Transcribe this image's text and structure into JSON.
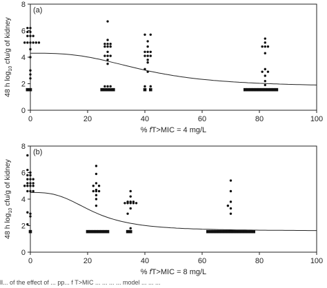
{
  "chart_data": [
    {
      "type": "scatter",
      "panel_label": "(a)",
      "xlabel_parts": [
        "% ",
        "f",
        "T>MIC = 4 mg/L"
      ],
      "ylabel": "48 h log10 cfu/g of kidney",
      "xlim": [
        0,
        100
      ],
      "ylim": [
        0,
        8
      ],
      "xticks": [
        "0",
        "20",
        "40",
        "60",
        "80",
        "100"
      ],
      "yticks": [
        "0",
        "2",
        "4",
        "6",
        "8"
      ],
      "grid": false,
      "series": [
        {
          "marker": "circle",
          "points": [
            [
              -1,
              6.2
            ],
            [
              0,
              6.2
            ],
            [
              -1,
              5.9
            ],
            [
              0,
              5.9
            ],
            [
              -1,
              5.6
            ],
            [
              0,
              5.6
            ],
            [
              1,
              5.6
            ],
            [
              -2,
              5.1
            ],
            [
              -1,
              5.1
            ],
            [
              0,
              5.1
            ],
            [
              1,
              5.1
            ],
            [
              2,
              5.1
            ],
            [
              3,
              5.1
            ],
            [
              0,
              4.6
            ],
            [
              0,
              4.0
            ],
            [
              0,
              3.0
            ],
            [
              0,
              2.7
            ],
            [
              0,
              2.4
            ],
            [
              27,
              6.7
            ],
            [
              27,
              5.3
            ],
            [
              26,
              5.0
            ],
            [
              27,
              5.0
            ],
            [
              28,
              5.0
            ],
            [
              26,
              4.8
            ],
            [
              27,
              4.8
            ],
            [
              28,
              4.8
            ],
            [
              27,
              4.4
            ],
            [
              26,
              4.1
            ],
            [
              27,
              4.1
            ],
            [
              28,
              4.1
            ],
            [
              27,
              3.8
            ],
            [
              27,
              3.5
            ],
            [
              26,
              1.8
            ],
            [
              27,
              1.8
            ],
            [
              28,
              1.8
            ],
            [
              40,
              5.7
            ],
            [
              42,
              5.7
            ],
            [
              41,
              5.2
            ],
            [
              41,
              4.8
            ],
            [
              40,
              4.4
            ],
            [
              41,
              4.4
            ],
            [
              42,
              4.4
            ],
            [
              40,
              4.1
            ],
            [
              41,
              4.1
            ],
            [
              42,
              4.1
            ],
            [
              41,
              3.8
            ],
            [
              41,
              3.6
            ],
            [
              40,
              3.1
            ],
            [
              41,
              2.9
            ],
            [
              40,
              1.8
            ],
            [
              42,
              1.8
            ],
            [
              82,
              5.4
            ],
            [
              82,
              5.1
            ],
            [
              81,
              4.8
            ],
            [
              82,
              4.8
            ],
            [
              83,
              4.8
            ],
            [
              82,
              4.3
            ],
            [
              82,
              3.1
            ],
            [
              81,
              2.9
            ],
            [
              83,
              2.9
            ],
            [
              82,
              2.6
            ],
            [
              82,
              2.2
            ],
            [
              82,
              1.9
            ]
          ]
        },
        {
          "marker": "square",
          "points": [
            [
              -1,
              1.55
            ],
            [
              0,
              1.55
            ],
            [
              25,
              1.55
            ],
            [
              26,
              1.55
            ],
            [
              27,
              1.55
            ],
            [
              28,
              1.55
            ],
            [
              29,
              1.55
            ],
            [
              40,
              1.55
            ],
            [
              42,
              1.55
            ],
            [
              75,
              1.55
            ],
            [
              76,
              1.55
            ],
            [
              77,
              1.55
            ],
            [
              78,
              1.55
            ],
            [
              79,
              1.55
            ],
            [
              80,
              1.55
            ],
            [
              81,
              1.55
            ],
            [
              82,
              1.55
            ],
            [
              83,
              1.55
            ],
            [
              84,
              1.55
            ],
            [
              85,
              1.55
            ],
            [
              86,
              1.55
            ]
          ]
        }
      ],
      "fit_curve": {
        "top": 4.3,
        "bottom": 1.75,
        "ec50": 40,
        "hill": 3
      }
    },
    {
      "type": "scatter",
      "panel_label": "(b)",
      "xlabel_parts": [
        "% ",
        "f",
        "T>MIC = 8 mg/L"
      ],
      "ylabel": "48 h log10 cfu/g of kidney",
      "xlim": [
        0,
        100
      ],
      "ylim": [
        0,
        8
      ],
      "xticks": [
        "0",
        "20",
        "40",
        "60",
        "80",
        "100"
      ],
      "yticks": [
        "0",
        "2",
        "4",
        "6",
        "8"
      ],
      "grid": false,
      "series": [
        {
          "marker": "circle",
          "points": [
            [
              -1,
              7.3
            ],
            [
              -1,
              6.2
            ],
            [
              0,
              6.0
            ],
            [
              -1,
              5.8
            ],
            [
              0,
              5.8
            ],
            [
              -1,
              5.5
            ],
            [
              0,
              5.5
            ],
            [
              1,
              5.5
            ],
            [
              -1,
              5.2
            ],
            [
              0,
              5.2
            ],
            [
              1,
              5.2
            ],
            [
              -2,
              5.0
            ],
            [
              -1,
              5.0
            ],
            [
              0,
              5.0
            ],
            [
              1,
              5.0
            ],
            [
              -1,
              4.6
            ],
            [
              0,
              4.6
            ],
            [
              1,
              4.6
            ],
            [
              -1,
              3.0
            ],
            [
              0,
              2.9
            ],
            [
              0,
              2.7
            ],
            [
              -1,
              2.1
            ],
            [
              23,
              6.5
            ],
            [
              23,
              5.9
            ],
            [
              23,
              5.2
            ],
            [
              22,
              5.0
            ],
            [
              24,
              5.0
            ],
            [
              23,
              4.7
            ],
            [
              22,
              4.6
            ],
            [
              23,
              4.6
            ],
            [
              24,
              4.6
            ],
            [
              23,
              4.3
            ],
            [
              23,
              4.0
            ],
            [
              23,
              3.5
            ],
            [
              35,
              4.6
            ],
            [
              35,
              4.2
            ],
            [
              34,
              3.8
            ],
            [
              35,
              3.8
            ],
            [
              36,
              3.8
            ],
            [
              33,
              3.7
            ],
            [
              34,
              3.7
            ],
            [
              35,
              3.7
            ],
            [
              36,
              3.7
            ],
            [
              37,
              3.7
            ],
            [
              35,
              3.3
            ],
            [
              34,
              2.9
            ],
            [
              35,
              1.8
            ],
            [
              70,
              5.4
            ],
            [
              70,
              4.6
            ],
            [
              70,
              3.8
            ],
            [
              69,
              3.5
            ],
            [
              70,
              3.3
            ],
            [
              70,
              2.9
            ]
          ]
        },
        {
          "marker": "square",
          "points": [
            [
              0,
              1.55
            ],
            [
              20,
              1.55
            ],
            [
              21,
              1.55
            ],
            [
              22,
              1.55
            ],
            [
              23,
              1.55
            ],
            [
              24,
              1.55
            ],
            [
              25,
              1.55
            ],
            [
              26,
              1.55
            ],
            [
              27,
              1.55
            ],
            [
              34,
              1.55
            ],
            [
              35,
              1.55
            ],
            [
              62,
              1.55
            ],
            [
              63,
              1.55
            ],
            [
              64,
              1.55
            ],
            [
              65,
              1.55
            ],
            [
              66,
              1.55
            ],
            [
              67,
              1.55
            ],
            [
              68,
              1.55
            ],
            [
              69,
              1.55
            ],
            [
              70,
              1.55
            ],
            [
              71,
              1.55
            ],
            [
              72,
              1.55
            ],
            [
              73,
              1.55
            ],
            [
              74,
              1.55
            ],
            [
              75,
              1.55
            ],
            [
              76,
              1.55
            ],
            [
              77,
              1.55
            ],
            [
              78,
              1.55
            ]
          ]
        }
      ],
      "fit_curve": {
        "top": 4.5,
        "bottom": 1.6,
        "ec50": 22,
        "hill": 3
      }
    }
  ],
  "caption": "ll... of the effect of ... pp... f T>MIC ... ... ... ... model ... ... ..."
}
